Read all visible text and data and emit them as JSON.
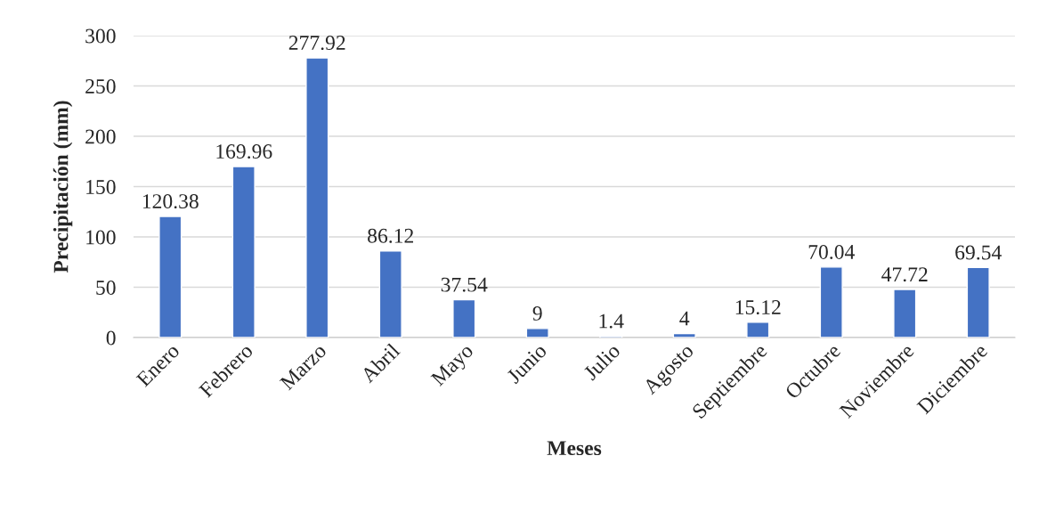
{
  "chart_data": {
    "type": "bar",
    "categories": [
      "Enero",
      "Febrero",
      "Marzo",
      "Abril",
      "Mayo",
      "Junio",
      "Julio",
      "Agosto",
      "Septiembre",
      "Octubre",
      "Noviembre",
      "Diciembre"
    ],
    "values": [
      120.38,
      169.96,
      277.92,
      86.12,
      37.54,
      9,
      1.4,
      4,
      15.12,
      70.04,
      47.72,
      69.54
    ],
    "color": "#4472c4",
    "xlabel": "Meses",
    "ylabel": "Precipitación (mm)",
    "ylim": [
      0,
      300
    ],
    "yticks": [
      0,
      50,
      100,
      150,
      200,
      250,
      300
    ],
    "grid": "y",
    "data_labels": true
  }
}
